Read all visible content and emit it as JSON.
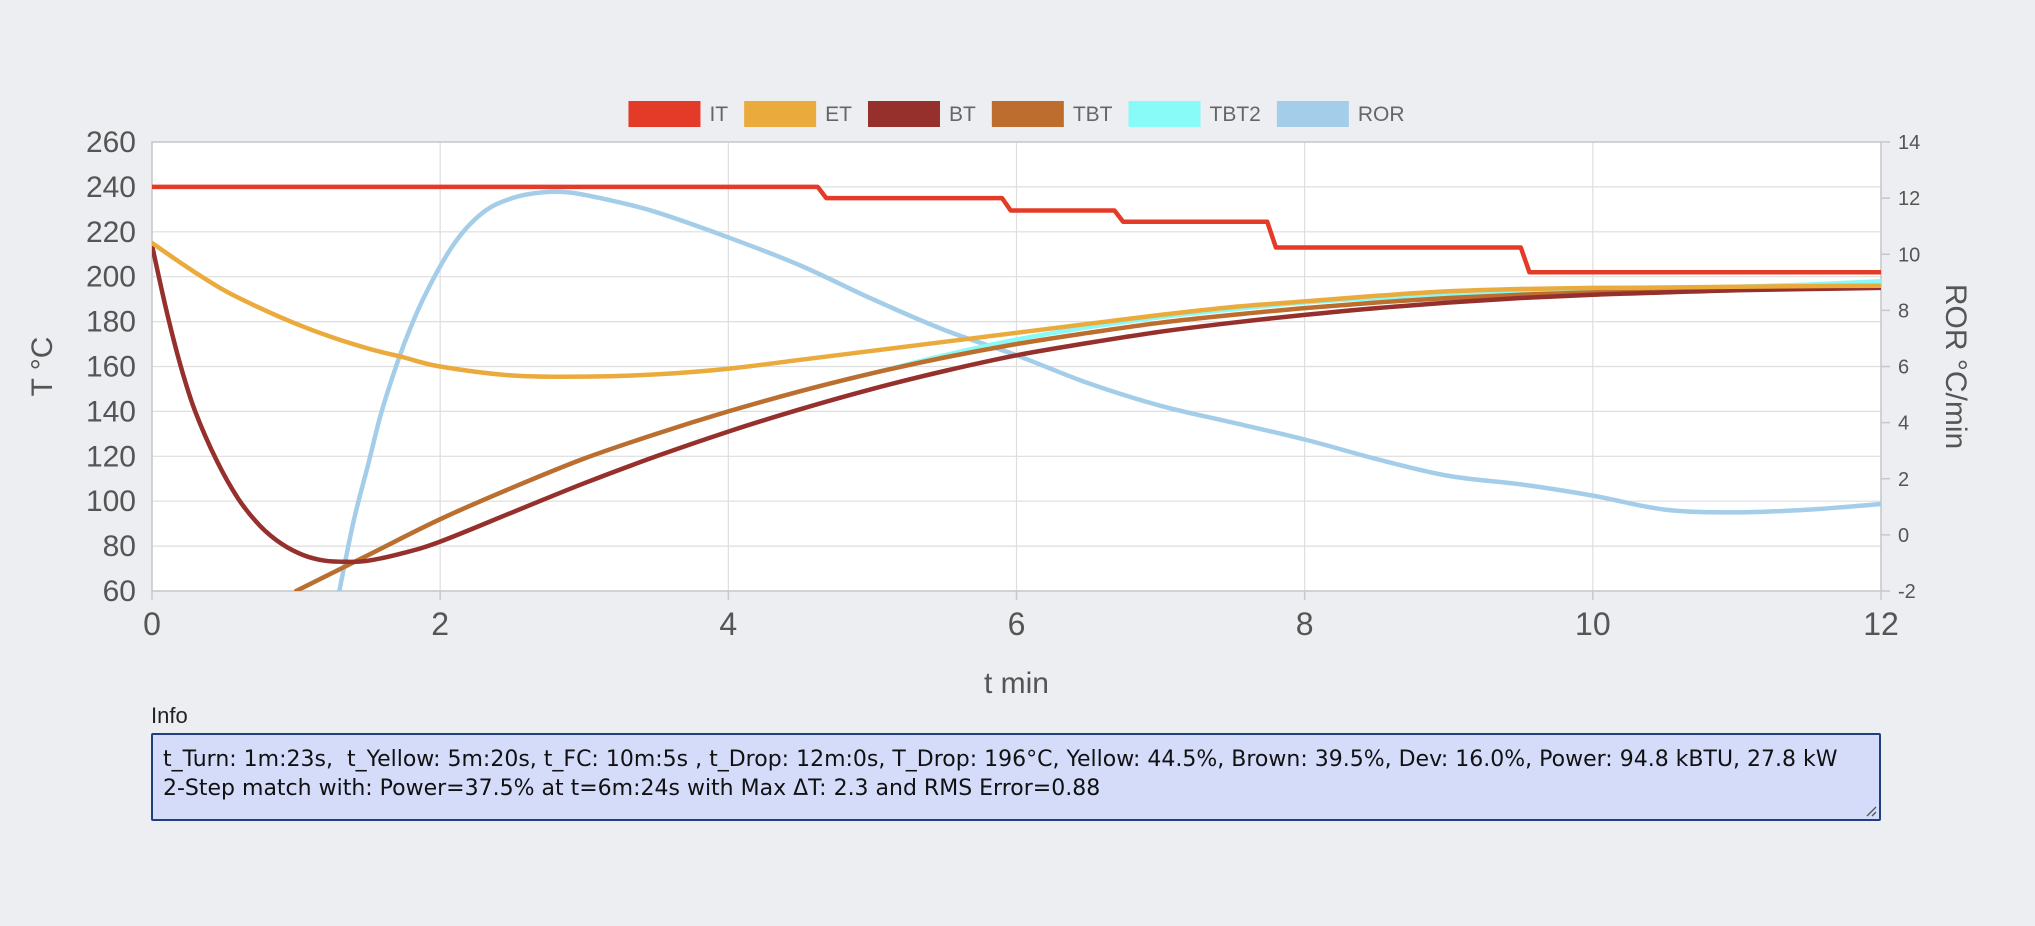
{
  "chart_data": {
    "type": "line",
    "xlabel": "t min",
    "ylabel": "T °C",
    "y2label": "ROR °C/min",
    "xlim": [
      0,
      12
    ],
    "ylim": [
      60,
      260
    ],
    "y2lim": [
      -2,
      14
    ],
    "xticks": [
      0,
      2,
      4,
      6,
      8,
      10,
      12
    ],
    "yticks": [
      60,
      80,
      100,
      120,
      140,
      160,
      180,
      200,
      220,
      240,
      260
    ],
    "y2ticks": [
      -2,
      0,
      2,
      4,
      6,
      8,
      10,
      12,
      14
    ],
    "grid": true,
    "legend_position": "top",
    "series": [
      {
        "name": "IT",
        "color": "#e33b27",
        "axis": "left",
        "x": [
          0,
          4.62,
          4.68,
          5.9,
          5.96,
          6.68,
          6.74,
          7.74,
          7.8,
          9.5,
          9.56,
          12
        ],
        "y": [
          240,
          240,
          235,
          235,
          229.5,
          229.5,
          224.5,
          224.5,
          213,
          213,
          202,
          202
        ]
      },
      {
        "name": "ET",
        "color": "#ebaa3c",
        "axis": "left",
        "x": [
          0,
          0.25,
          0.5,
          0.75,
          1,
          1.25,
          1.5,
          1.75,
          2,
          2.5,
          3,
          3.5,
          4,
          4.5,
          5,
          5.5,
          6,
          6.5,
          7,
          7.5,
          8,
          8.5,
          9,
          9.5,
          10,
          10.5,
          11,
          11.5,
          12
        ],
        "y": [
          215,
          204,
          194,
          186,
          179,
          173,
          168,
          164,
          160,
          156,
          155.5,
          156.5,
          159,
          163,
          167,
          171,
          175,
          179,
          183,
          186.5,
          189,
          191.5,
          193.5,
          194.5,
          195,
          195.2,
          195.5,
          195.8,
          196
        ]
      },
      {
        "name": "BT",
        "color": "#95302c",
        "axis": "left",
        "x": [
          0,
          0.1,
          0.2,
          0.3,
          0.45,
          0.6,
          0.75,
          0.9,
          1.05,
          1.2,
          1.35,
          1.5,
          1.75,
          2,
          2.5,
          3,
          3.5,
          4,
          4.5,
          5,
          5.5,
          6,
          6.5,
          7,
          7.5,
          8,
          8.5,
          9,
          9.5,
          10,
          10.5,
          11,
          11.5,
          12
        ],
        "y": [
          214,
          185,
          160,
          140,
          118,
          101,
          89,
          81,
          76,
          73.5,
          73,
          73.5,
          77,
          82,
          95,
          108,
          120,
          131,
          141,
          150,
          158,
          165,
          170.5,
          175.5,
          179.5,
          183,
          186,
          188.5,
          190.5,
          192,
          193,
          194,
          194.5,
          195
        ]
      },
      {
        "name": "TBT",
        "color": "#bd6e2e",
        "axis": "left",
        "x": [
          1,
          1.5,
          2,
          2.5,
          3,
          3.5,
          4,
          4.5,
          5,
          5.5,
          6,
          6.5,
          7,
          7.5,
          8,
          8.5,
          9,
          9.5,
          10,
          10.5,
          11,
          11.5,
          12
        ],
        "y": [
          60,
          76,
          92,
          106,
          119,
          130,
          140,
          149,
          157,
          164,
          170,
          175,
          179.5,
          183,
          186,
          188.5,
          190.5,
          192,
          193,
          194,
          194.5,
          195,
          195.5
        ]
      },
      {
        "name": "TBT2",
        "color": "#88fbf8",
        "axis": "left",
        "x": [
          1,
          1.5,
          2,
          2.5,
          3,
          3.5,
          4,
          4.5,
          5,
          5.5,
          6,
          6.5,
          7,
          7.5,
          8,
          8.5,
          9,
          9.5,
          10,
          10.5,
          11,
          11.5,
          12
        ],
        "y": [
          60,
          76,
          92,
          106,
          119,
          130,
          140,
          149,
          157,
          165,
          172,
          177.5,
          182,
          185.5,
          188.5,
          190.5,
          192,
          193,
          194,
          195,
          195.5,
          196.5,
          198
        ]
      },
      {
        "name": "ROR",
        "color": "#a4cde9",
        "axis": "right",
        "x": [
          1.3,
          1.4,
          1.5,
          1.6,
          1.75,
          1.9,
          2.1,
          2.3,
          2.5,
          2.7,
          2.9,
          3.2,
          3.5,
          4,
          4.5,
          5,
          5.5,
          6,
          6.5,
          7,
          7.5,
          8,
          8.5,
          9,
          9.5,
          10,
          10.5,
          11,
          11.5,
          12
        ],
        "y": [
          -2,
          0.5,
          2.5,
          4.5,
          6.8,
          8.6,
          10.4,
          11.5,
          12,
          12.2,
          12.2,
          11.9,
          11.5,
          10.6,
          9.6,
          8.4,
          7.3,
          6.4,
          5.4,
          4.6,
          4,
          3.4,
          2.7,
          2.1,
          1.8,
          1.4,
          0.9,
          0.8,
          0.9,
          1.1
        ]
      }
    ]
  },
  "info": {
    "label": "Info",
    "line1": "t_Turn: 1m:23s,  t_Yellow: 5m:20s, t_FC: 10m:5s , t_Drop: 12m:0s, T_Drop: 196°C, Yellow: 44.5%, Brown: 39.5%, Dev: 16.0%, Power: 94.8 kBTU, 27.8 kW",
    "line2": "2-Step match with: Power=37.5% at t=6m:24s with Max ΔT: 2.3 and RMS Error=0.88"
  }
}
